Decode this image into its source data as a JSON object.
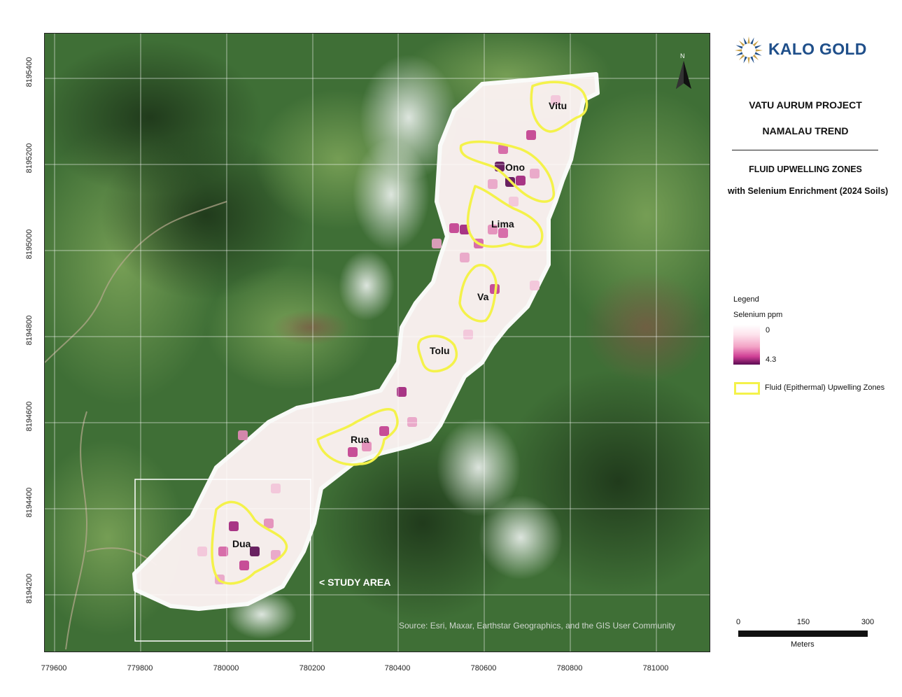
{
  "logo": {
    "text": "KALO GOLD"
  },
  "titles": {
    "line1": "VATU AURUM PROJECT",
    "line2": "NAMALAU TREND",
    "line3": "FLUID UPWELLING ZONES",
    "line4": "with Selenium Enrichment (2024 Soils)"
  },
  "legend": {
    "heading": "Legend",
    "ramp_title": "Selenium ppm",
    "ramp_min": "0",
    "ramp_max": "4.3",
    "zone_label": "Fluid (Epithermal) Upwelling Zones",
    "colors": {
      "zone_outline": "#f4f24a",
      "ramp_low": "#ffffff",
      "ramp_high": "#5a0a52"
    }
  },
  "axes": {
    "x_ticks": [
      "779600",
      "779800",
      "780000",
      "780200",
      "780400",
      "780600",
      "780800",
      "781000"
    ],
    "y_ticks": [
      "8195400",
      "8195200",
      "8195000",
      "8194800",
      "8194600",
      "8194400",
      "8194200"
    ]
  },
  "zones": [
    {
      "name": "Vitu"
    },
    {
      "name": "Ono"
    },
    {
      "name": "Lima"
    },
    {
      "name": "Va"
    },
    {
      "name": "Tolu"
    },
    {
      "name": "Rua"
    },
    {
      "name": "Dua"
    }
  ],
  "study_area_label": "< STUDY AREA",
  "source_text": "Source: Esri, Maxar, Earthstar Geographics, and the GIS User Community",
  "north_label": "N",
  "scalebar": {
    "labels": [
      "0",
      "150",
      "300"
    ],
    "units": "Meters"
  }
}
